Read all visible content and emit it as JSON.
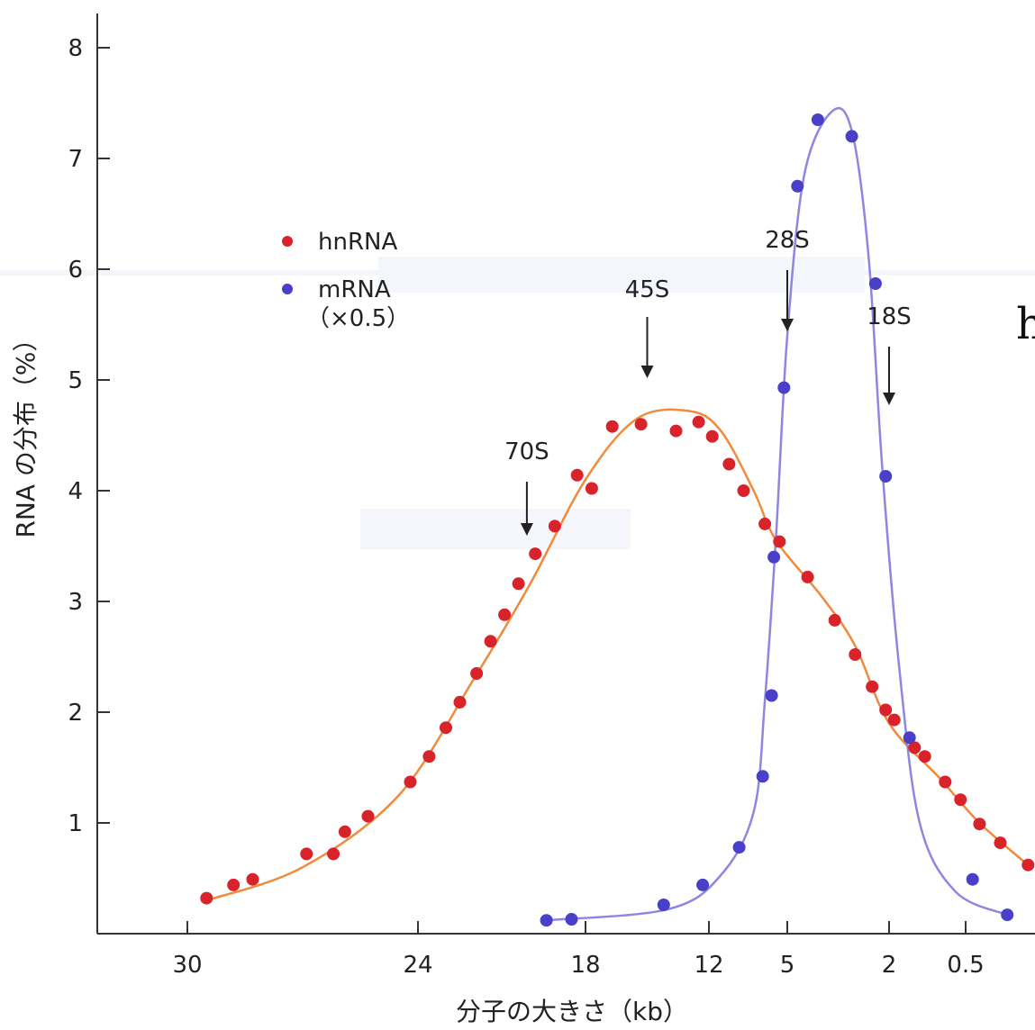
{
  "chart_data": {
    "type": "scatter",
    "xlabel": "分子の大きさ（kb）",
    "ylabel": "RNA の分布（%）",
    "x_tick_labels": [
      "30",
      "24",
      "18",
      "12",
      "5",
      "2",
      "0.5"
    ],
    "y_ticks": [
      1,
      2,
      3,
      4,
      5,
      6,
      7,
      8
    ],
    "ylim": [
      0,
      8.4
    ],
    "x_axis_note": "nonlinear axis; tick labels as printed",
    "legend": [
      {
        "name": "hnRNA",
        "color": "#d8232a"
      },
      {
        "name": "mRNA",
        "sub": "（×0.5）",
        "color": "#4a3fc8"
      }
    ],
    "series": [
      {
        "name": "hnRNA",
        "color": "#d8232a",
        "curve_color": "#f08a3c",
        "points": [
          [
            29.5,
            0.32
          ],
          [
            28.8,
            0.44
          ],
          [
            28.3,
            0.49
          ],
          [
            26.9,
            0.72
          ],
          [
            26.2,
            0.72
          ],
          [
            25.9,
            0.92
          ],
          [
            25.3,
            1.06
          ],
          [
            24.2,
            1.37
          ],
          [
            23.6,
            1.6
          ],
          [
            23.0,
            1.86
          ],
          [
            22.5,
            2.09
          ],
          [
            21.9,
            2.35
          ],
          [
            21.4,
            2.64
          ],
          [
            20.9,
            2.88
          ],
          [
            20.4,
            3.16
          ],
          [
            19.8,
            3.43
          ],
          [
            19.1,
            3.68
          ],
          [
            18.3,
            4.14
          ],
          [
            17.7,
            4.02
          ],
          [
            16.7,
            4.58
          ],
          [
            15.3,
            4.6
          ],
          [
            13.6,
            4.54
          ],
          [
            12.5,
            4.62
          ],
          [
            11.7,
            4.49
          ],
          [
            10.2,
            4.24
          ],
          [
            8.9,
            4.0
          ],
          [
            7.0,
            3.7
          ],
          [
            5.7,
            3.54
          ],
          [
            4.4,
            3.22
          ],
          [
            3.6,
            2.83
          ],
          [
            3.0,
            2.52
          ],
          [
            2.5,
            2.23
          ],
          [
            2.1,
            2.02
          ],
          [
            1.9,
            1.93
          ],
          [
            1.5,
            1.68
          ],
          [
            1.3,
            1.6
          ],
          [
            0.9,
            1.37
          ],
          [
            0.6,
            1.21
          ],
          [
            0.3,
            0.99
          ],
          [
            0.0,
            0.82
          ],
          [
            -0.4,
            0.62
          ]
        ],
        "curve": [
          [
            29.5,
            0.3
          ],
          [
            27,
            0.6
          ],
          [
            24.5,
            1.25
          ],
          [
            22,
            2.3
          ],
          [
            20,
            3.15
          ],
          [
            18,
            4.1
          ],
          [
            15.5,
            4.65
          ],
          [
            13,
            4.72
          ],
          [
            11,
            4.55
          ],
          [
            8,
            4.0
          ],
          [
            6,
            3.55
          ],
          [
            4,
            3.05
          ],
          [
            3,
            2.6
          ],
          [
            2,
            1.9
          ],
          [
            1,
            1.4
          ],
          [
            0.3,
            1.0
          ],
          [
            -0.4,
            0.62
          ]
        ]
      },
      {
        "name": "mRNA",
        "color": "#4a3fc8",
        "curve_color": "#8e86e0",
        "points": [
          [
            19.4,
            0.12
          ],
          [
            18.5,
            0.13
          ],
          [
            14.2,
            0.26
          ],
          [
            12.3,
            0.44
          ],
          [
            9.3,
            0.78
          ],
          [
            7.2,
            1.42
          ],
          [
            6.4,
            2.15
          ],
          [
            6.2,
            3.4
          ],
          [
            5.3,
            4.93
          ],
          [
            4.7,
            6.75
          ],
          [
            4.1,
            7.35
          ],
          [
            3.1,
            7.2
          ],
          [
            2.4,
            5.87
          ],
          [
            2.1,
            4.13
          ],
          [
            1.6,
            1.77
          ],
          [
            0.4,
            0.49
          ],
          [
            -0.1,
            0.17
          ]
        ],
        "curve": [
          [
            19.4,
            0.12
          ],
          [
            14,
            0.22
          ],
          [
            11,
            0.52
          ],
          [
            8,
            1.1
          ],
          [
            7,
            2.1
          ],
          [
            6,
            3.6
          ],
          [
            5,
            5.4
          ],
          [
            4.5,
            6.85
          ],
          [
            3.7,
            7.42
          ],
          [
            3.1,
            7.25
          ],
          [
            2.6,
            6.1
          ],
          [
            2.2,
            4.2
          ],
          [
            1.8,
            2.4
          ],
          [
            1.4,
            1.0
          ],
          [
            0.7,
            0.38
          ],
          [
            -0.1,
            0.17
          ]
        ]
      }
    ],
    "annotations": [
      {
        "label": "70S",
        "x": 20.1
      },
      {
        "label": "45S",
        "x": 15.0
      },
      {
        "label": "28S",
        "x": 5.0
      },
      {
        "label": "18S",
        "x": 2.0
      }
    ]
  },
  "edge_text": "h"
}
